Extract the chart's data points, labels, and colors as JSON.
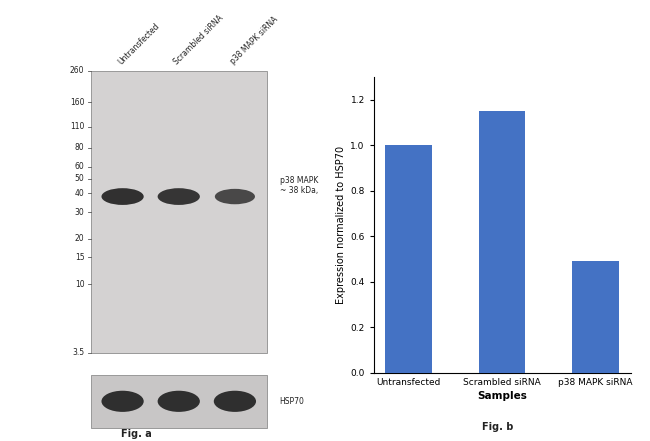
{
  "bar_categories": [
    "Untransfected",
    "Scrambled siRNA",
    "p38 MAPK siRNA"
  ],
  "bar_values": [
    1.0,
    1.15,
    0.49
  ],
  "bar_color": "#4472C4",
  "ylabel": "Expression normalized to HSP70",
  "xlabel": "Samples",
  "ylim": [
    0,
    1.3
  ],
  "yticks": [
    0,
    0.2,
    0.4,
    0.6,
    0.8,
    1.0,
    1.2
  ],
  "fig_a_label": "Fig. a",
  "fig_b_label": "Fig. b",
  "wb_marker_labels": [
    "260",
    "160",
    "110",
    "80",
    "60",
    "50",
    "40",
    "30",
    "20",
    "15",
    "10",
    "3.5"
  ],
  "p38_label": "p38 MAPK\n~ 38 kDa,",
  "hsp70_label": "HSP70",
  "lane_labels": [
    "Untransfected",
    "Scrambled siRNA",
    "p38 MAPK siRNA"
  ],
  "background_color": "#ffffff",
  "wb_bg_color": "#d4d2d2",
  "hsp_bg_color": "#c8c6c6",
  "band_color": "#1a1a1a",
  "gel_edge_color": "#999999"
}
